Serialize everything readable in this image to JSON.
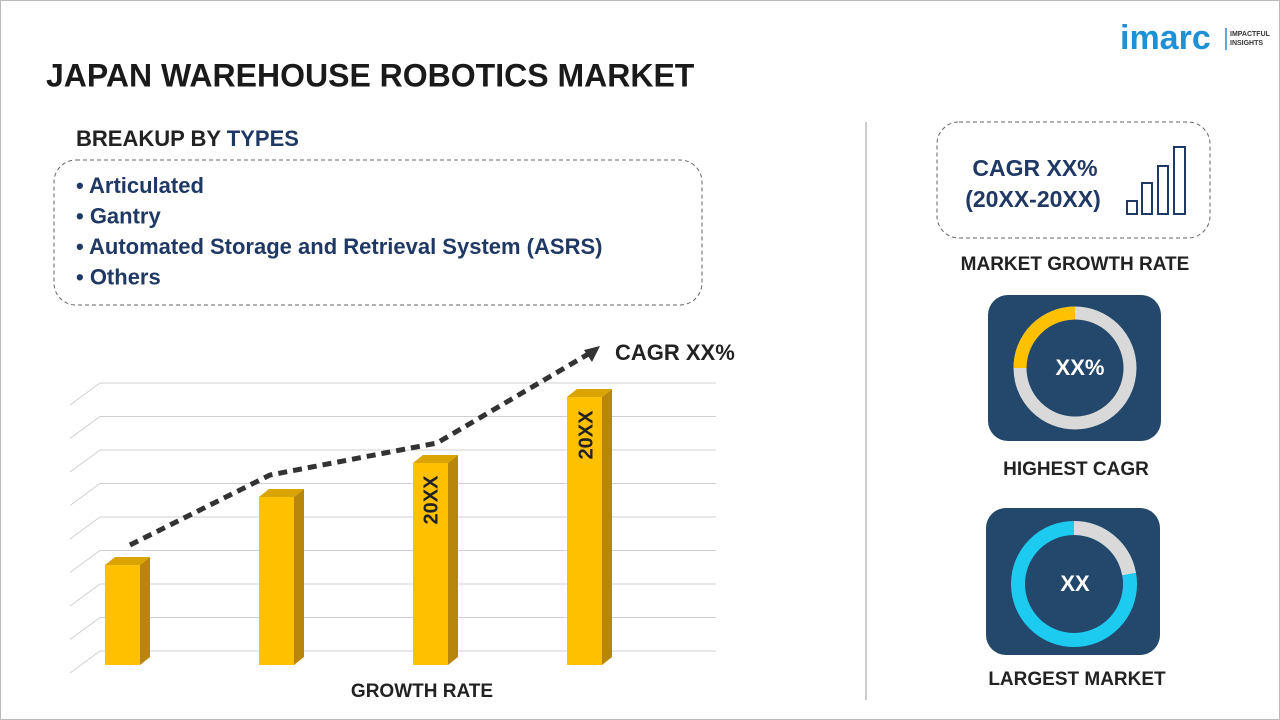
{
  "header": {
    "title": "JAPAN WAREHOUSE ROBOTICS MARKET",
    "logo": "imarc",
    "logo_tagline_1": "IMPACTFUL",
    "logo_tagline_2": "INSIGHTS"
  },
  "breakup": {
    "heading_prefix": "BREAKUP BY",
    "heading_highlight": "TYPES",
    "items": [
      "• Articulated",
      "• Gantry",
      "• Automated Storage and Retrieval System (ASRS)",
      "• Others"
    ]
  },
  "growth_chart": {
    "cagr_label": "CAGR XX%",
    "bar_labels": [
      "20XX",
      "20XX"
    ],
    "caption": "GROWTH RATE"
  },
  "side_panel": {
    "cagr_line1": "CAGR XX%",
    "cagr_line2": "(20XX-20XX)",
    "cagr_caption": "MARKET GROWTH RATE",
    "highest_value": "XX%",
    "highest_caption": "HIGHEST CAGR",
    "largest_value": "XX",
    "largest_caption": "LARGEST MARKET"
  }
}
